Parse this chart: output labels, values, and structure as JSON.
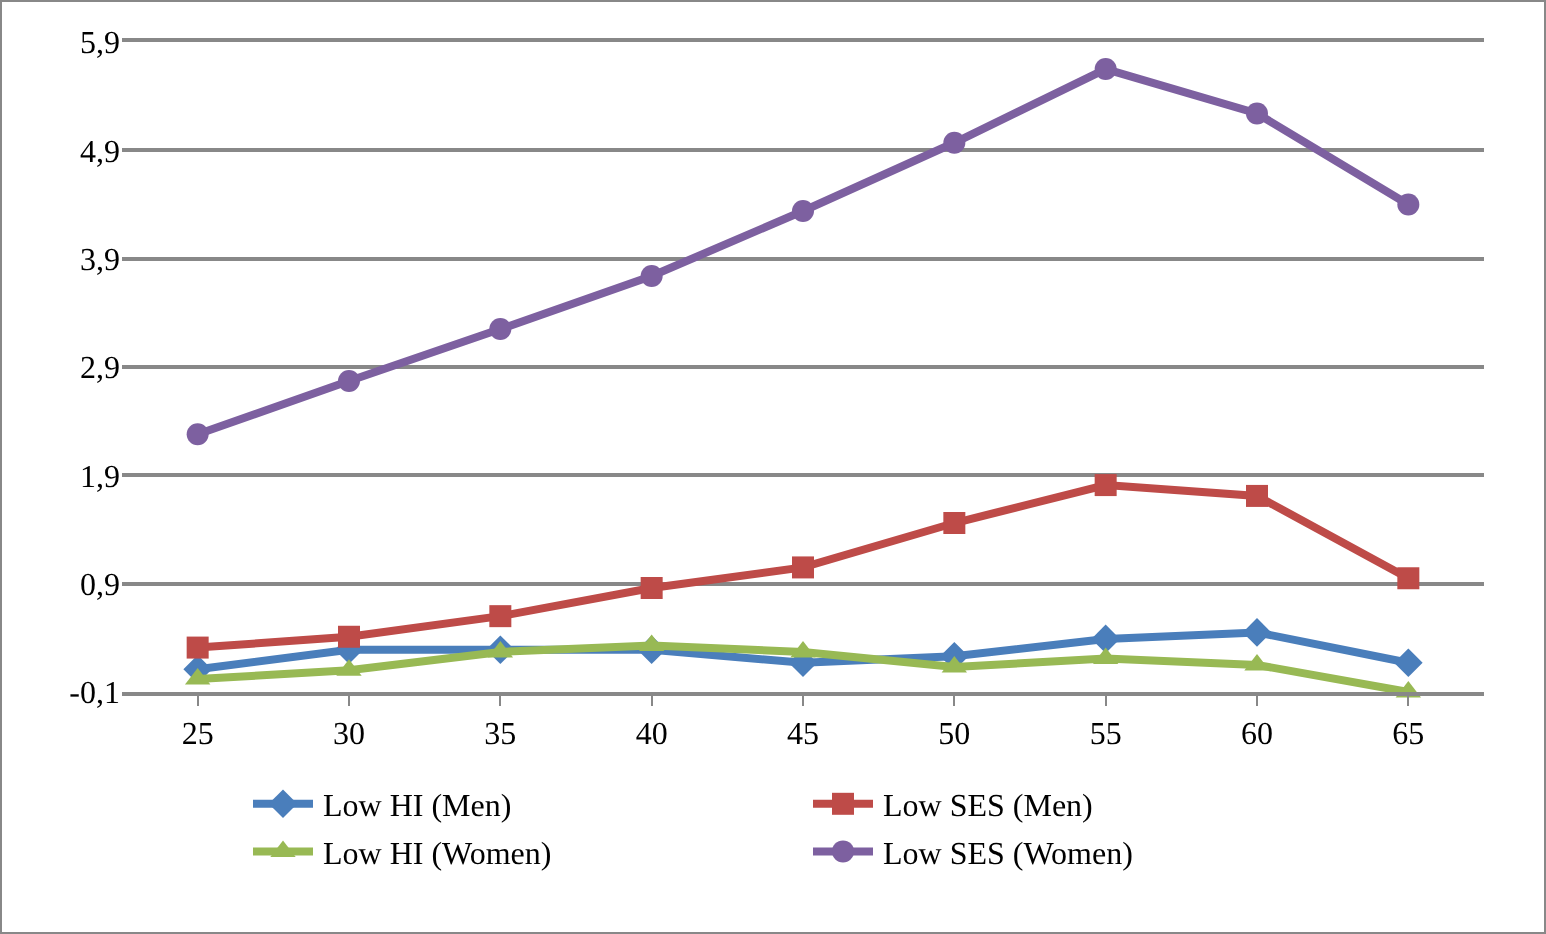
{
  "chart_data": {
    "type": "line",
    "categories": [
      "25",
      "30",
      "35",
      "40",
      "45",
      "50",
      "55",
      "60",
      "65"
    ],
    "ylim": [
      -0.1,
      5.9
    ],
    "yticks": [
      {
        "value": -0.1,
        "label": "-0,1"
      },
      {
        "value": 0.9,
        "label": "0,9"
      },
      {
        "value": 1.9,
        "label": "1,9"
      },
      {
        "value": 2.9,
        "label": "2,9"
      },
      {
        "value": 3.9,
        "label": "3,9"
      },
      {
        "value": 4.9,
        "label": "4,9"
      },
      {
        "value": 5.9,
        "label": "5,9"
      }
    ],
    "grid": "y",
    "legend": "bottom",
    "series": [
      {
        "name": "Low HI (Men)",
        "color": "#4a7ebb",
        "marker": "diamond",
        "values": [
          0.11,
          0.29,
          0.29,
          0.29,
          0.17,
          0.23,
          0.39,
          0.45,
          0.17
        ]
      },
      {
        "name": "Low SES (Men)",
        "color": "#be4b48",
        "marker": "square",
        "values": [
          0.31,
          0.41,
          0.6,
          0.86,
          1.05,
          1.46,
          1.81,
          1.71,
          0.95
        ]
      },
      {
        "name": "Low HI (Women)",
        "color": "#98b954",
        "marker": "triangle",
        "values": [
          0.02,
          0.1,
          0.27,
          0.33,
          0.27,
          0.13,
          0.21,
          0.15,
          -0.1
        ]
      },
      {
        "name": "Low SES (Women)",
        "color": "#7d60a0",
        "marker": "circle",
        "values": [
          2.28,
          2.77,
          3.25,
          3.74,
          4.34,
          4.97,
          5.65,
          5.24,
          4.4
        ]
      }
    ]
  }
}
